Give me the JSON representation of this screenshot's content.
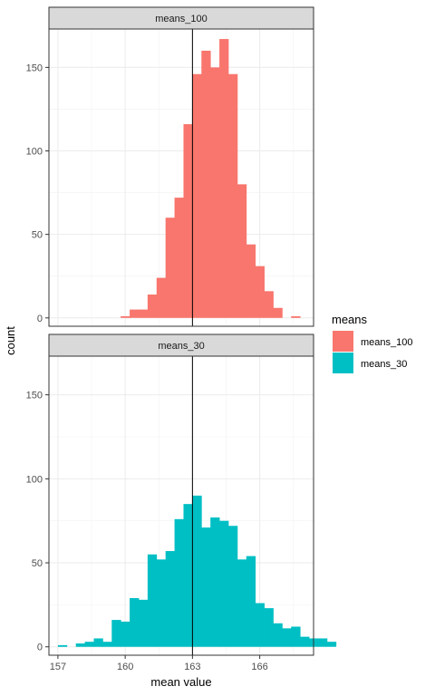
{
  "chart_data": {
    "type": "histogram",
    "xlabel": "mean value",
    "ylabel": "count",
    "xlim": [
      156.6,
      168.4
    ],
    "ylim": [
      -5,
      173
    ],
    "x_ticks": [
      157,
      160,
      163,
      166
    ],
    "y_ticks": [
      0,
      50,
      100,
      150
    ],
    "vline_x": 163,
    "grid": true,
    "bin_width": 0.4,
    "legend": {
      "title": "means",
      "position": "right",
      "entries": [
        "means_100",
        "means_30"
      ]
    },
    "series": [
      {
        "name": "means_100",
        "panel_label": "means_100",
        "color": "#F8766D",
        "bins_start": 159.8,
        "counts": [
          1,
          5,
          5,
          14,
          24,
          60,
          72,
          116,
          146,
          160,
          150,
          167,
          146,
          80,
          44,
          31,
          16,
          6,
          0,
          1
        ]
      },
      {
        "name": "means_30",
        "panel_label": "means_30",
        "color": "#00BFC4",
        "bins_start": 157.0,
        "counts": [
          1,
          0,
          2,
          3,
          5,
          3,
          16,
          15,
          29,
          28,
          55,
          52,
          57,
          76,
          85,
          90,
          71,
          77,
          75,
          72,
          52,
          54,
          26,
          23,
          14,
          11,
          12,
          6,
          5,
          5,
          3
        ]
      }
    ]
  }
}
